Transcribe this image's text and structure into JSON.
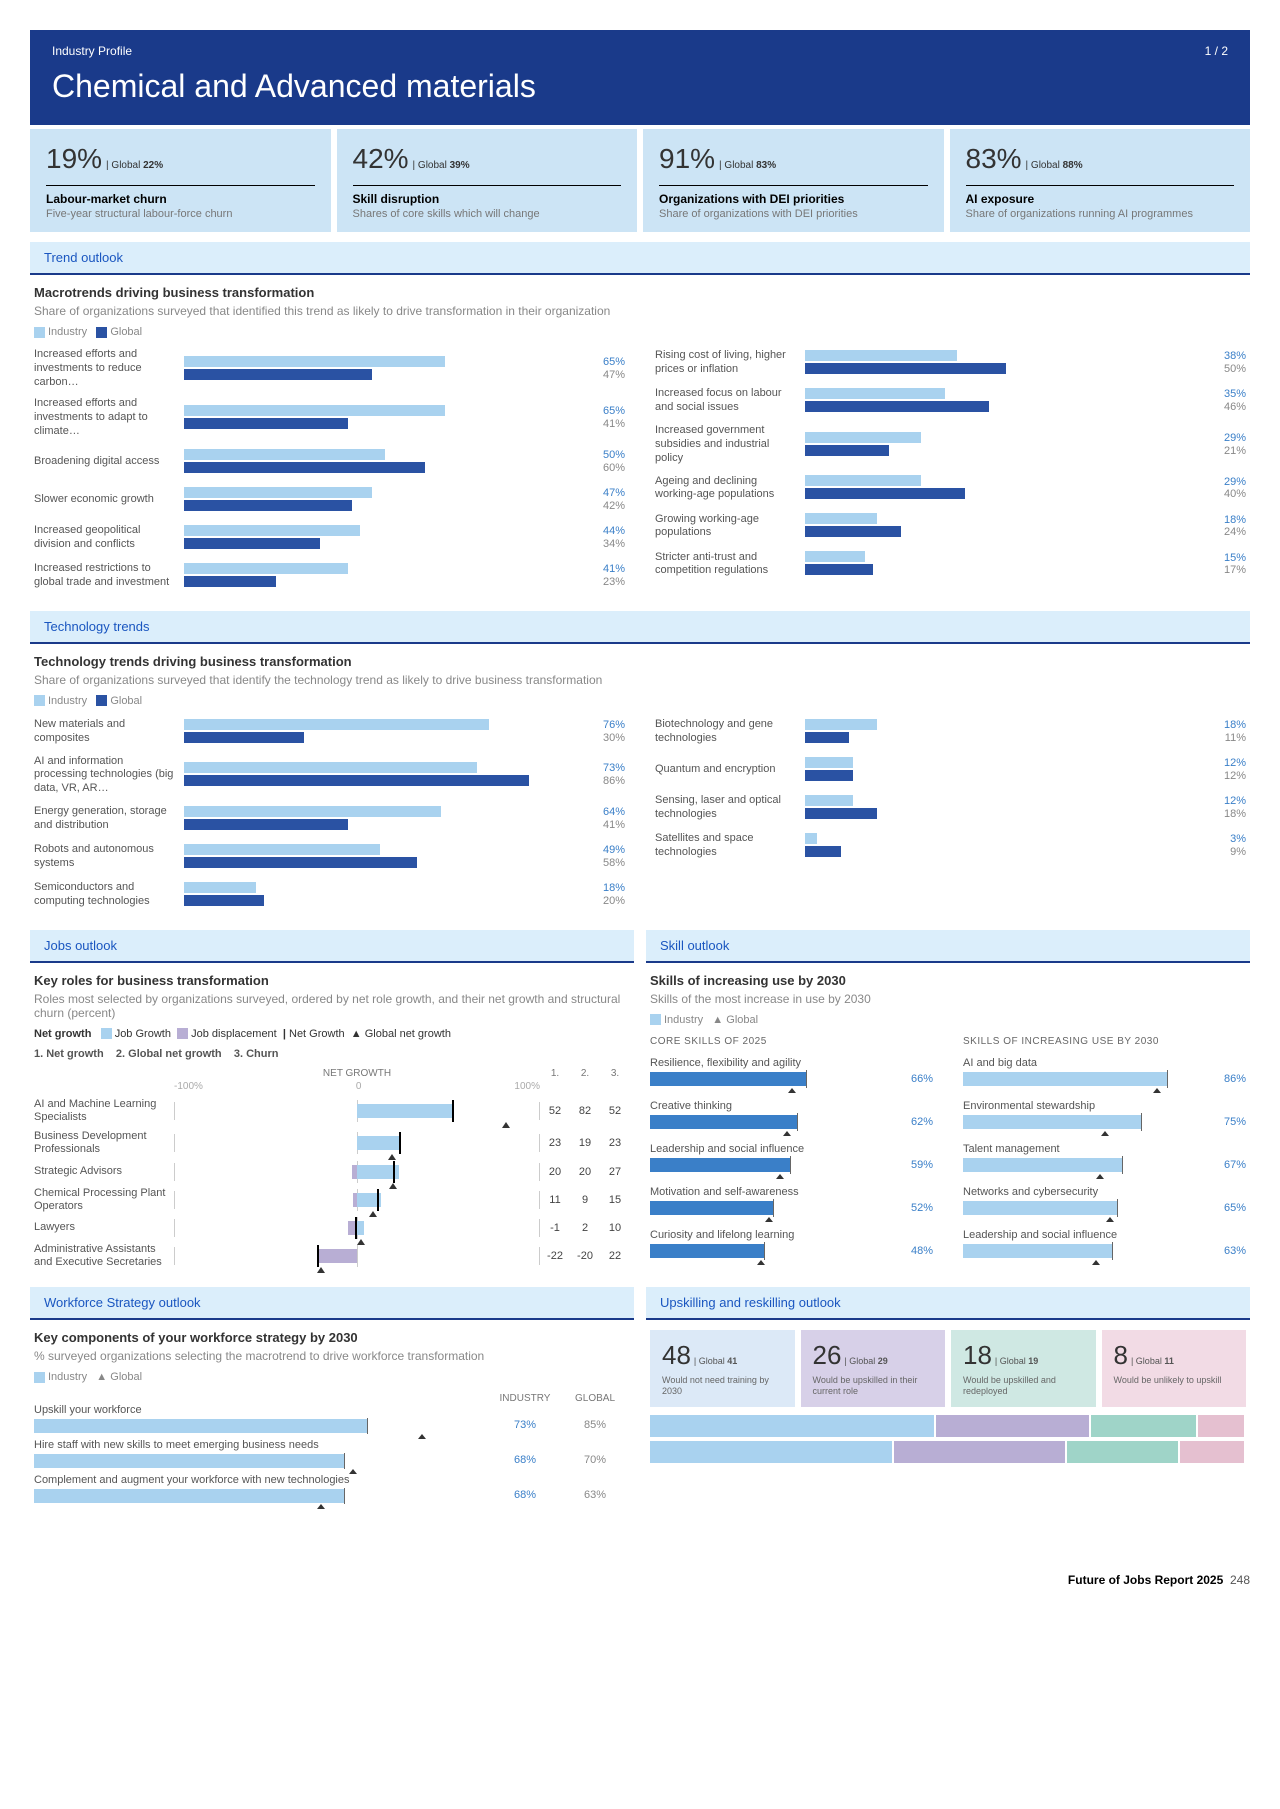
{
  "header": {
    "subtitle": "Industry Profile",
    "page": "1 / 2",
    "title": "Chemical and Advanced materials"
  },
  "kpis": [
    {
      "val": "19%",
      "glob": "22%",
      "title": "Labour-market churn",
      "sub": "Five-year structural labour-force churn"
    },
    {
      "val": "42%",
      "glob": "39%",
      "title": "Skill disruption",
      "sub": "Shares of core skills which will change"
    },
    {
      "val": "91%",
      "glob": "83%",
      "title": "Organizations with DEI priorities",
      "sub": "Share of organizations with DEI priorities"
    },
    {
      "val": "83%",
      "glob": "88%",
      "title": "AI exposure",
      "sub": "Share of organizations running AI programmes"
    }
  ],
  "trend": {
    "head": "Trend outlook",
    "title": "Macrotrends driving business transformation",
    "sub": "Share of organizations surveyed that identified this trend as likely to drive transformation in their organization",
    "legend_ind": "Industry",
    "legend_glob": "Global",
    "left": [
      {
        "label": "Increased efforts and investments to reduce carbon…",
        "ind": 65,
        "glob": 47
      },
      {
        "label": "Increased efforts and investments to adapt to climate…",
        "ind": 65,
        "glob": 41
      },
      {
        "label": "Broadening digital access",
        "ind": 50,
        "glob": 60
      },
      {
        "label": "Slower economic growth",
        "ind": 47,
        "glob": 42
      },
      {
        "label": "Increased geopolitical division and conflicts",
        "ind": 44,
        "glob": 34
      },
      {
        "label": "Increased restrictions to global trade and investment",
        "ind": 41,
        "glob": 23
      }
    ],
    "right": [
      {
        "label": "Rising cost of living, higher prices or inflation",
        "ind": 38,
        "glob": 50
      },
      {
        "label": "Increased focus on labour and social issues",
        "ind": 35,
        "glob": 46
      },
      {
        "label": "Increased government subsidies and industrial policy",
        "ind": 29,
        "glob": 21
      },
      {
        "label": "Ageing and declining working-age populations",
        "ind": 29,
        "glob": 40
      },
      {
        "label": "Growing working-age populations",
        "ind": 18,
        "glob": 24
      },
      {
        "label": "Stricter anti-trust and competition regulations",
        "ind": 15,
        "glob": 17
      }
    ]
  },
  "tech": {
    "head": "Technology trends",
    "title": "Technology trends driving business transformation",
    "sub": "Share of organizations surveyed that identify the technology trend as likely to drive business transformation",
    "left": [
      {
        "label": "New materials and composites",
        "ind": 76,
        "glob": 30
      },
      {
        "label": "AI and information processing technologies (big data, VR, AR…",
        "ind": 73,
        "glob": 86
      },
      {
        "label": "Energy generation, storage and distribution",
        "ind": 64,
        "glob": 41
      },
      {
        "label": "Robots and autonomous systems",
        "ind": 49,
        "glob": 58
      },
      {
        "label": "Semiconductors and computing technologies",
        "ind": 18,
        "glob": 20
      }
    ],
    "right": [
      {
        "label": "Biotechnology and gene technologies",
        "ind": 18,
        "glob": 11
      },
      {
        "label": "Quantum and encryption",
        "ind": 12,
        "glob": 12
      },
      {
        "label": "Sensing, laser and optical technologies",
        "ind": 12,
        "glob": 18
      },
      {
        "label": "Satellites and space technologies",
        "ind": 3,
        "glob": 9
      }
    ]
  },
  "jobs": {
    "head": "Jobs outlook",
    "title": "Key roles for business transformation",
    "sub": "Roles most selected by organizations surveyed, ordered by net role growth, and their net growth and structural churn (percent)",
    "legend": {
      "netg": "Net growth",
      "jg": "Job Growth",
      "jd": "Job displacement",
      "ng": "Net Growth",
      "gng": "Global net growth"
    },
    "cols": {
      "c1": "1. Net growth",
      "c2": "2. Global net growth",
      "c3": "3. Churn"
    },
    "axis": {
      "min": "-100%",
      "mid": "0",
      "max": "100%",
      "title": "NET GROWTH",
      "h1": "1.",
      "h2": "2.",
      "h3": "3."
    },
    "rows": [
      {
        "label": "AI and Machine Learning Specialists",
        "growth": 52,
        "disp": 0,
        "net": 52,
        "gnet": 82,
        "churn": 52
      },
      {
        "label": "Business Development Professionals",
        "growth": 23,
        "disp": 0,
        "net": 23,
        "gnet": 19,
        "churn": 23
      },
      {
        "label": "Strategic Advisors",
        "growth": 23,
        "disp": -3,
        "net": 20,
        "gnet": 20,
        "churn": 27
      },
      {
        "label": "Chemical Processing Plant Operators",
        "growth": 13,
        "disp": -2,
        "net": 11,
        "gnet": 9,
        "churn": 15
      },
      {
        "label": "Lawyers",
        "growth": 4,
        "disp": -5,
        "net": -1,
        "gnet": 2,
        "churn": 10
      },
      {
        "label": "Administrative Assistants and Executive Secretaries",
        "growth": 0,
        "disp": -22,
        "net": -22,
        "gnet": -20,
        "churn": 22
      }
    ]
  },
  "skills": {
    "head": "Skill outlook",
    "title": "Skills of increasing use by 2030",
    "sub": "Skills of the most increase in use by 2030",
    "legend_ind": "Industry",
    "legend_glob": "Global",
    "core_title": "CORE SKILLS OF 2025",
    "inc_title": "SKILLS OF INCREASING USE BY 2030",
    "core": [
      {
        "label": "Resilience, flexibility and agility",
        "ind": 66,
        "glob": 60
      },
      {
        "label": "Creative thinking",
        "ind": 62,
        "glob": 58
      },
      {
        "label": "Leadership and social influence",
        "ind": 59,
        "glob": 55
      },
      {
        "label": "Motivation and self-awareness",
        "ind": 52,
        "glob": 50
      },
      {
        "label": "Curiosity and lifelong learning",
        "ind": 48,
        "glob": 47
      }
    ],
    "inc": [
      {
        "label": "AI and big data",
        "ind": 86,
        "glob": 82
      },
      {
        "label": "Environmental stewardship",
        "ind": 75,
        "glob": 60
      },
      {
        "label": "Talent management",
        "ind": 67,
        "glob": 58
      },
      {
        "label": "Networks and cybersecurity",
        "ind": 65,
        "glob": 62
      },
      {
        "label": "Leadership and social influence",
        "ind": 63,
        "glob": 56
      }
    ]
  },
  "workforce": {
    "head": "Workforce Strategy outlook",
    "title": "Key components of your workforce strategy by 2030",
    "sub": "% surveyed organizations selecting the macrotrend to drive workforce transformation",
    "col_ind": "INDUSTRY",
    "col_glob": "GLOBAL",
    "rows": [
      {
        "label": "Upskill your workforce",
        "ind": 73,
        "glob": 85
      },
      {
        "label": "Hire staff with new skills to meet emerging business needs",
        "ind": 68,
        "glob": 70
      },
      {
        "label": "Complement and augment your workforce with new technologies",
        "ind": 68,
        "glob": 63
      }
    ]
  },
  "upskill": {
    "head": "Upskilling and reskilling outlook",
    "kpis": [
      {
        "val": "48",
        "glob": "41",
        "title": "Would not need training by 2030"
      },
      {
        "val": "26",
        "glob": "29",
        "title": "Would be upskilled in their current role"
      },
      {
        "val": "18",
        "glob": "19",
        "title": "Would be upskilled and redeployed"
      },
      {
        "val": "8",
        "glob": "11",
        "title": "Would be unlikely to upskill"
      }
    ],
    "colors": [
      "#a9d2ef",
      "#b8aed4",
      "#9fd4c8",
      "#e5c0d0"
    ],
    "stacks": [
      [
        48,
        26,
        18,
        8
      ],
      [
        41,
        29,
        19,
        11
      ]
    ]
  },
  "footer": {
    "title": "Future of Jobs Report 2025",
    "page": "248"
  },
  "labels": {
    "global_prefix": "| Global "
  }
}
